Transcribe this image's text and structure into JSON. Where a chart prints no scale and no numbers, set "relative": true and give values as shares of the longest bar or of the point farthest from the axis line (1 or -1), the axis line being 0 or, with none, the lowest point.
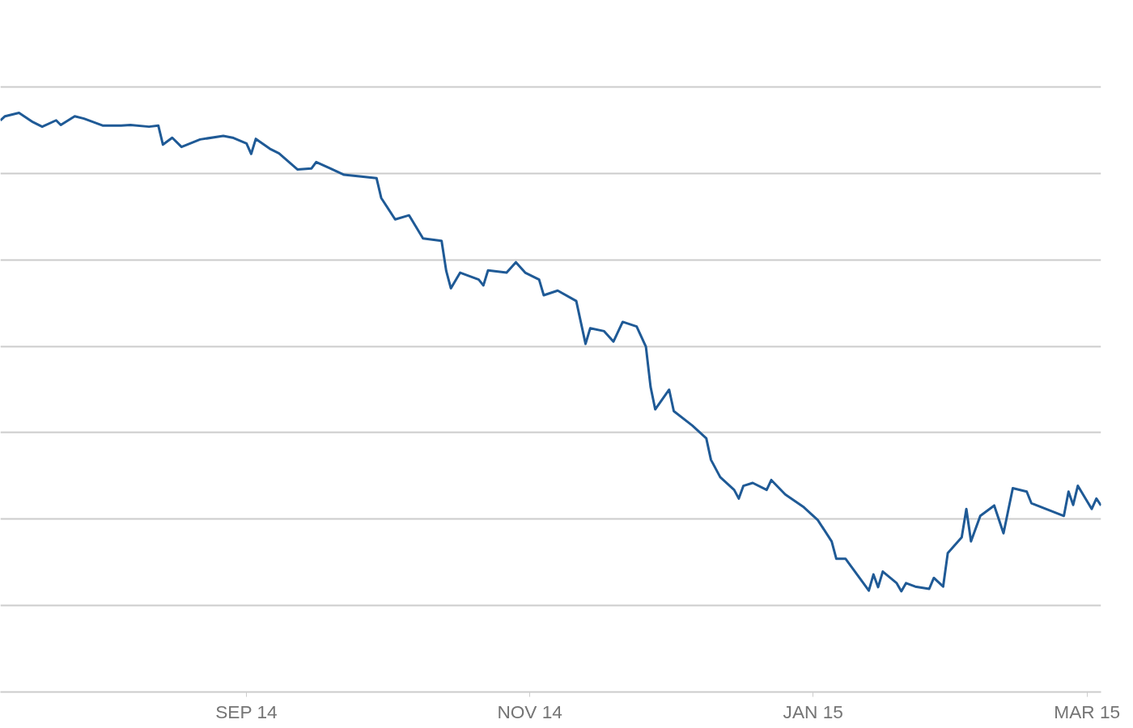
{
  "chart_data": {
    "type": "line",
    "relative": true,
    "grid": "y",
    "tick_labels": "x",
    "xlim": [
      "2014-07-10",
      "2015-03-04"
    ],
    "xticks": [
      {
        "value": "2014-09-01",
        "label": "SEP 14"
      },
      {
        "value": "2014-11-01",
        "label": "NOV 14"
      },
      {
        "value": "2015-01-01",
        "label": "JAN 15"
      },
      {
        "value": "2015-03-01",
        "label": "MAR 15"
      }
    ],
    "x": [
      "2014-07-10",
      "2014-07-11",
      "2014-07-14",
      "2014-07-17",
      "2014-07-19",
      "2014-07-22",
      "2014-07-23",
      "2014-07-26",
      "2014-07-28",
      "2014-08-01",
      "2014-08-05",
      "2014-08-07",
      "2014-08-11",
      "2014-08-13",
      "2014-08-14",
      "2014-08-16",
      "2014-08-18",
      "2014-08-22",
      "2014-08-27",
      "2014-08-29",
      "2014-09-01",
      "2014-09-02",
      "2014-09-03",
      "2014-09-06",
      "2014-09-08",
      "2014-09-12",
      "2014-09-15",
      "2014-09-16",
      "2014-09-19",
      "2014-09-22",
      "2014-09-29",
      "2014-09-30",
      "2014-10-03",
      "2014-10-06",
      "2014-10-09",
      "2014-10-13",
      "2014-10-14",
      "2014-10-15",
      "2014-10-17",
      "2014-10-21",
      "2014-10-22",
      "2014-10-23",
      "2014-10-27",
      "2014-10-29",
      "2014-10-31",
      "2014-11-03",
      "2014-11-04",
      "2014-11-07",
      "2014-11-11",
      "2014-11-13",
      "2014-11-14",
      "2014-11-17",
      "2014-11-19",
      "2014-11-21",
      "2014-11-24",
      "2014-11-26",
      "2014-11-27",
      "2014-11-28",
      "2014-12-01",
      "2014-12-02",
      "2014-12-06",
      "2014-12-09",
      "2014-12-10",
      "2014-12-12",
      "2014-12-15",
      "2014-12-16",
      "2014-12-17",
      "2014-12-19",
      "2014-12-22",
      "2014-12-23",
      "2014-12-26",
      "2014-12-30",
      "2015-01-02",
      "2015-01-05",
      "2015-01-06",
      "2015-01-08",
      "2015-01-13",
      "2015-01-14",
      "2015-01-15",
      "2015-01-16",
      "2015-01-19",
      "2015-01-20",
      "2015-01-21",
      "2015-01-23",
      "2015-01-26",
      "2015-01-27",
      "2015-01-29",
      "2015-01-30",
      "2015-02-02",
      "2015-02-03",
      "2015-02-04",
      "2015-02-06",
      "2015-02-09",
      "2015-02-11",
      "2015-02-13",
      "2015-02-16",
      "2015-02-17",
      "2015-02-24",
      "2015-02-25",
      "2015-02-26",
      "2015-02-27",
      "2015-03-02",
      "2015-03-03",
      "2015-03-04"
    ],
    "series": [
      {
        "color": "#1f5a96",
        "values": [
          0.987,
          0.994,
          1.0,
          0.984,
          0.976,
          0.987,
          0.979,
          0.994,
          0.99,
          0.978,
          0.978,
          0.979,
          0.976,
          0.978,
          0.945,
          0.957,
          0.941,
          0.954,
          0.96,
          0.957,
          0.947,
          0.929,
          0.955,
          0.938,
          0.93,
          0.902,
          0.904,
          0.915,
          0.904,
          0.893,
          0.887,
          0.853,
          0.816,
          0.823,
          0.783,
          0.779,
          0.727,
          0.697,
          0.724,
          0.712,
          0.702,
          0.728,
          0.724,
          0.742,
          0.724,
          0.712,
          0.685,
          0.693,
          0.675,
          0.601,
          0.628,
          0.623,
          0.605,
          0.639,
          0.631,
          0.596,
          0.527,
          0.488,
          0.522,
          0.485,
          0.46,
          0.438,
          0.401,
          0.371,
          0.349,
          0.334,
          0.356,
          0.361,
          0.349,
          0.366,
          0.341,
          0.319,
          0.297,
          0.26,
          0.23,
          0.23,
          0.175,
          0.203,
          0.181,
          0.208,
          0.188,
          0.174,
          0.188,
          0.182,
          0.178,
          0.197,
          0.182,
          0.24,
          0.267,
          0.316,
          0.26,
          0.304,
          0.322,
          0.274,
          0.352,
          0.346,
          0.326,
          0.304,
          0.346,
          0.323,
          0.356,
          0.316,
          0.334,
          0.322
        ]
      }
    ]
  }
}
